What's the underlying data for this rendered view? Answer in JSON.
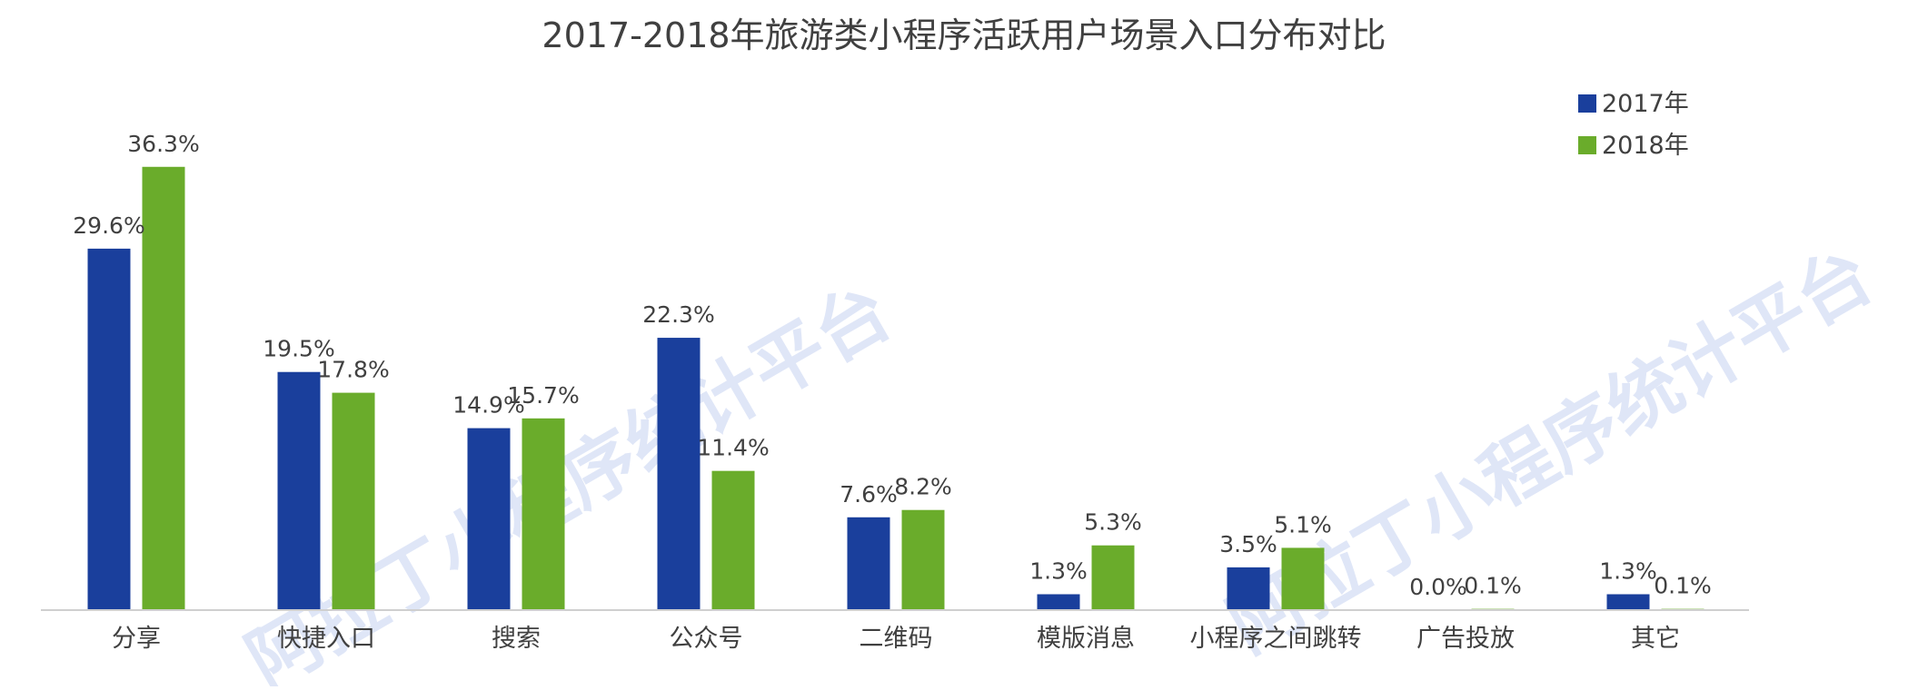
{
  "chart_data": {
    "type": "bar",
    "title": "2017-2018年旅游类小程序活跃用户场景入口分布对比",
    "xlabel": "",
    "ylabel": "",
    "ylim": [
      0,
      40
    ],
    "grid": false,
    "legend_position": "top-right",
    "value_suffix": "%",
    "categories": [
      "分享",
      "快捷入口",
      "搜索",
      "公众号",
      "二维码",
      "模版消息",
      "小程序之间跳转",
      "广告投放",
      "其它"
    ],
    "series": [
      {
        "name": "2017年",
        "color": "#1a3f9c",
        "values": [
          29.6,
          19.5,
          14.9,
          22.3,
          7.6,
          1.3,
          3.5,
          0.0,
          1.3
        ]
      },
      {
        "name": "2018年",
        "color": "#6aac2b",
        "values": [
          36.3,
          17.8,
          15.7,
          11.4,
          8.2,
          5.3,
          5.1,
          0.1,
          0.1
        ]
      }
    ]
  },
  "watermark": {
    "text": "阿拉丁小程序统计平台",
    "color": "#dfe6f7"
  },
  "colors": {
    "axis": "#cfcfcf",
    "text": "#404040"
  }
}
